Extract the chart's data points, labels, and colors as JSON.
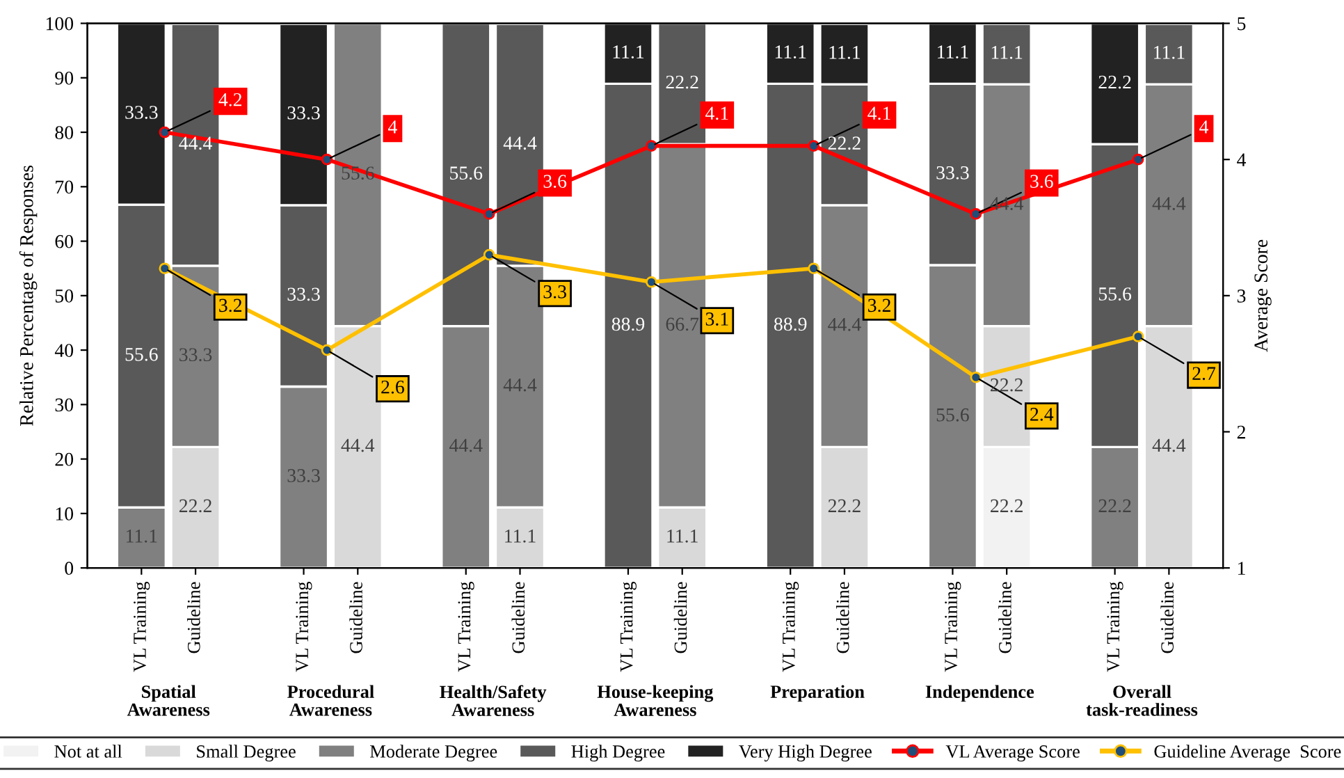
{
  "chart_data": {
    "type": "bar",
    "stacked": true,
    "data_labels": true,
    "categories": [
      "VL Training",
      "Guideline",
      "VL Training",
      "Guideline",
      "VL Training",
      "Guideline",
      "VL Training",
      "Guideline",
      "VL Training",
      "Guideline",
      "VL Training",
      "Guideline",
      "VL Training",
      "Guideline"
    ],
    "annotations": [
      "Spatial Awareness",
      "Procedural Awareness",
      "Health/Safety Awareness",
      "House-keeping Awareness",
      "Preparation",
      "Independence",
      "Overall task-readiness"
    ],
    "ylabel": "Relative Percentage of Responses",
    "y2label": "Average Score",
    "ylim": [
      0,
      100
    ],
    "yticks": [
      0,
      10,
      20,
      30,
      40,
      50,
      60,
      70,
      80,
      90,
      100
    ],
    "y2lim": [
      1,
      5
    ],
    "y2ticks": [
      1,
      2,
      3,
      4,
      5
    ],
    "legend": "bottom",
    "marker": "circle",
    "series": [
      {
        "name": "Not at all",
        "color": "#f2f2f2",
        "values": [
          null,
          null,
          null,
          null,
          null,
          null,
          null,
          null,
          null,
          null,
          null,
          22.2,
          null,
          null
        ]
      },
      {
        "name": "Small Degree",
        "color": "#d9d9d9",
        "values": [
          null,
          22.2,
          null,
          44.4,
          null,
          11.1,
          null,
          11.1,
          null,
          22.2,
          null,
          22.2,
          null,
          44.4
        ]
      },
      {
        "name": "Moderate Degree",
        "color": "#808080",
        "values": [
          11.1,
          33.3,
          33.3,
          55.6,
          44.4,
          44.4,
          null,
          66.7,
          null,
          44.4,
          55.6,
          44.4,
          22.2,
          44.4
        ]
      },
      {
        "name": "High Degree",
        "color": "#595959",
        "values": [
          55.6,
          44.4,
          33.3,
          null,
          55.6,
          44.4,
          88.9,
          22.2,
          88.9,
          22.2,
          33.3,
          11.1,
          55.6,
          11.1
        ]
      },
      {
        "name": "Very High Degree",
        "color": "#222222",
        "values": [
          33.3,
          null,
          33.3,
          null,
          null,
          null,
          11.1,
          null,
          11.1,
          11.1,
          11.1,
          null,
          22.2,
          null
        ]
      },
      {
        "name": "VL Average Score",
        "type": "line",
        "axis": "y2",
        "color": "#ff0000",
        "values": [
          4.2,
          null,
          4,
          null,
          3.6,
          null,
          4.1,
          null,
          4.1,
          null,
          3.6,
          null,
          4,
          null
        ]
      },
      {
        "name": "Guideline Average  Score",
        "type": "line",
        "axis": "y2",
        "color": "#ffc000",
        "values": [
          3.2,
          null,
          2.6,
          null,
          3.3,
          null,
          3.1,
          null,
          3.2,
          null,
          2.4,
          null,
          2.7,
          null
        ]
      }
    ]
  }
}
